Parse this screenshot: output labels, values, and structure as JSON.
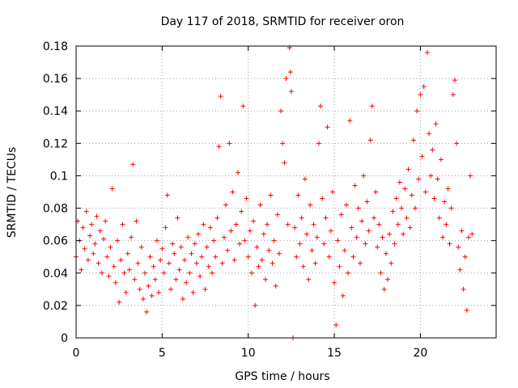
{
  "chart_data": {
    "type": "scatter",
    "title": "Day 117 of 2018, SRMTID for receiver oron",
    "xlabel": "GPS time / hours",
    "ylabel": "SRMTID / TECUs",
    "xlim": [
      0,
      24.4
    ],
    "ylim": [
      0,
      0.18
    ],
    "xticks": [
      0,
      5,
      10,
      15,
      20
    ],
    "xtick_labels": [
      "0",
      "5",
      "10",
      "15",
      "20"
    ],
    "yticks": [
      0,
      0.02,
      0.04,
      0.06,
      0.08,
      0.1,
      0.12,
      0.14,
      0.16,
      0.18
    ],
    "ytick_labels": [
      "0",
      "0.02",
      "0.04",
      "0.06",
      "0.08",
      "0.1",
      "0.12",
      "0.14",
      "0.16",
      "0.18"
    ],
    "grid": true,
    "marker": "+",
    "color": "#ff0000",
    "series": [
      {
        "name": "SRMTID",
        "points": [
          [
            0.0,
            0.05
          ],
          [
            0.1,
            0.072
          ],
          [
            0.2,
            0.06
          ],
          [
            0.3,
            0.042
          ],
          [
            0.4,
            0.068
          ],
          [
            0.5,
            0.055
          ],
          [
            0.6,
            0.078
          ],
          [
            0.7,
            0.048
          ],
          [
            0.8,
            0.063
          ],
          [
            0.9,
            0.07
          ],
          [
            1.0,
            0.052
          ],
          [
            1.1,
            0.058
          ],
          [
            1.2,
            0.075
          ],
          [
            1.3,
            0.046
          ],
          [
            1.4,
            0.066
          ],
          [
            1.5,
            0.04
          ],
          [
            1.6,
            0.061
          ],
          [
            1.7,
            0.072
          ],
          [
            1.8,
            0.05
          ],
          [
            1.9,
            0.038
          ],
          [
            2.0,
            0.056
          ],
          [
            2.1,
            0.092
          ],
          [
            2.2,
            0.044
          ],
          [
            2.3,
            0.034
          ],
          [
            2.4,
            0.06
          ],
          [
            2.5,
            0.022
          ],
          [
            2.6,
            0.048
          ],
          [
            2.7,
            0.07
          ],
          [
            2.8,
            0.04
          ],
          [
            2.9,
            0.028
          ],
          [
            3.0,
            0.052
          ],
          [
            3.1,
            0.042
          ],
          [
            3.2,
            0.062
          ],
          [
            3.3,
            0.107
          ],
          [
            3.4,
            0.036
          ],
          [
            3.5,
            0.072
          ],
          [
            3.6,
            0.046
          ],
          [
            3.7,
            0.03
          ],
          [
            3.8,
            0.056
          ],
          [
            3.9,
            0.024
          ],
          [
            4.0,
            0.04
          ],
          [
            4.1,
            0.016
          ],
          [
            4.2,
            0.032
          ],
          [
            4.3,
            0.05
          ],
          [
            4.4,
            0.026
          ],
          [
            4.5,
            0.044
          ],
          [
            4.6,
            0.036
          ],
          [
            4.7,
            0.06
          ],
          [
            4.8,
            0.028
          ],
          [
            4.9,
            0.048
          ],
          [
            5.0,
            0.055
          ],
          [
            5.1,
            0.04
          ],
          [
            5.2,
            0.068
          ],
          [
            5.3,
            0.088
          ],
          [
            5.4,
            0.046
          ],
          [
            5.5,
            0.03
          ],
          [
            5.6,
            0.058
          ],
          [
            5.7,
            0.052
          ],
          [
            5.8,
            0.036
          ],
          [
            5.9,
            0.074
          ],
          [
            6.0,
            0.042
          ],
          [
            6.1,
            0.056
          ],
          [
            6.2,
            0.024
          ],
          [
            6.3,
            0.048
          ],
          [
            6.4,
            0.034
          ],
          [
            6.5,
            0.062
          ],
          [
            6.6,
            0.04
          ],
          [
            6.7,
            0.052
          ],
          [
            6.8,
            0.028
          ],
          [
            6.9,
            0.058
          ],
          [
            7.0,
            0.046
          ],
          [
            7.1,
            0.064
          ],
          [
            7.2,
            0.038
          ],
          [
            7.3,
            0.05
          ],
          [
            7.4,
            0.07
          ],
          [
            7.5,
            0.03
          ],
          [
            7.6,
            0.056
          ],
          [
            7.7,
            0.044
          ],
          [
            7.8,
            0.068
          ],
          [
            7.9,
            0.04
          ],
          [
            8.0,
            0.06
          ],
          [
            8.1,
            0.05
          ],
          [
            8.2,
            0.074
          ],
          [
            8.3,
            0.118
          ],
          [
            8.4,
            0.149
          ],
          [
            8.5,
            0.046
          ],
          [
            8.6,
            0.062
          ],
          [
            8.7,
            0.082
          ],
          [
            8.8,
            0.054
          ],
          [
            8.9,
            0.12
          ],
          [
            9.0,
            0.066
          ],
          [
            9.1,
            0.09
          ],
          [
            9.2,
            0.048
          ],
          [
            9.3,
            0.07
          ],
          [
            9.4,
            0.102
          ],
          [
            9.5,
            0.058
          ],
          [
            9.6,
            0.078
          ],
          [
            9.7,
            0.143
          ],
          [
            9.8,
            0.06
          ],
          [
            9.9,
            0.086
          ],
          [
            10.0,
            0.05
          ],
          [
            10.1,
            0.066
          ],
          [
            10.2,
            0.04
          ],
          [
            10.3,
            0.072
          ],
          [
            10.4,
            0.02
          ],
          [
            10.5,
            0.056
          ],
          [
            10.6,
            0.044
          ],
          [
            10.7,
            0.082
          ],
          [
            10.8,
            0.048
          ],
          [
            10.9,
            0.064
          ],
          [
            11.0,
            0.036
          ],
          [
            11.1,
            0.07
          ],
          [
            11.2,
            0.054
          ],
          [
            11.3,
            0.088
          ],
          [
            11.4,
            0.046
          ],
          [
            11.5,
            0.06
          ],
          [
            11.6,
            0.032
          ],
          [
            11.7,
            0.076
          ],
          [
            11.8,
            0.052
          ],
          [
            11.9,
            0.14
          ],
          [
            12.0,
            0.12
          ],
          [
            12.1,
            0.108
          ],
          [
            12.2,
            0.16
          ],
          [
            12.3,
            0.07
          ],
          [
            12.4,
            0.179
          ],
          [
            12.45,
            0.164
          ],
          [
            12.5,
            0.152
          ],
          [
            12.6,
            0.0
          ],
          [
            12.7,
            0.068
          ],
          [
            12.8,
            0.05
          ],
          [
            12.9,
            0.088
          ],
          [
            13.0,
            0.058
          ],
          [
            13.1,
            0.074
          ],
          [
            13.2,
            0.044
          ],
          [
            13.3,
            0.098
          ],
          [
            13.4,
            0.064
          ],
          [
            13.5,
            0.036
          ],
          [
            13.6,
            0.082
          ],
          [
            13.7,
            0.054
          ],
          [
            13.8,
            0.07
          ],
          [
            13.9,
            0.046
          ],
          [
            14.0,
            0.062
          ],
          [
            14.1,
            0.12
          ],
          [
            14.2,
            0.143
          ],
          [
            14.3,
            0.086
          ],
          [
            14.4,
            0.058
          ],
          [
            14.5,
            0.074
          ],
          [
            14.6,
            0.13
          ],
          [
            14.7,
            0.05
          ],
          [
            14.8,
            0.066
          ],
          [
            14.9,
            0.09
          ],
          [
            15.0,
            0.034
          ],
          [
            15.1,
            0.008
          ],
          [
            15.2,
            0.06
          ],
          [
            15.3,
            0.044
          ],
          [
            15.4,
            0.076
          ],
          [
            15.5,
            0.026
          ],
          [
            15.6,
            0.054
          ],
          [
            15.7,
            0.082
          ],
          [
            15.8,
            0.04
          ],
          [
            15.9,
            0.134
          ],
          [
            16.0,
            0.068
          ],
          [
            16.1,
            0.05
          ],
          [
            16.2,
            0.094
          ],
          [
            16.3,
            0.062
          ],
          [
            16.4,
            0.08
          ],
          [
            16.5,
            0.046
          ],
          [
            16.6,
            0.072
          ],
          [
            16.7,
            0.1
          ],
          [
            16.8,
            0.058
          ],
          [
            16.9,
            0.084
          ],
          [
            17.0,
            0.066
          ],
          [
            17.1,
            0.122
          ],
          [
            17.2,
            0.143
          ],
          [
            17.3,
            0.074
          ],
          [
            17.4,
            0.09
          ],
          [
            17.5,
            0.056
          ],
          [
            17.6,
            0.07
          ],
          [
            17.7,
            0.04
          ],
          [
            17.8,
            0.062
          ],
          [
            17.9,
            0.03
          ],
          [
            18.0,
            0.052
          ],
          [
            18.1,
            0.036
          ],
          [
            18.2,
            0.064
          ],
          [
            18.3,
            0.046
          ],
          [
            18.4,
            0.078
          ],
          [
            18.5,
            0.058
          ],
          [
            18.6,
            0.086
          ],
          [
            18.7,
            0.07
          ],
          [
            18.8,
            0.096
          ],
          [
            18.9,
            0.08
          ],
          [
            19.0,
            0.064
          ],
          [
            19.1,
            0.092
          ],
          [
            19.2,
            0.074
          ],
          [
            19.3,
            0.104
          ],
          [
            19.4,
            0.068
          ],
          [
            19.5,
            0.088
          ],
          [
            19.6,
            0.122
          ],
          [
            19.7,
            0.08
          ],
          [
            19.8,
            0.14
          ],
          [
            19.9,
            0.098
          ],
          [
            20.0,
            0.15
          ],
          [
            20.1,
            0.112
          ],
          [
            20.2,
            0.155
          ],
          [
            20.3,
            0.09
          ],
          [
            20.4,
            0.176
          ],
          [
            20.5,
            0.126
          ],
          [
            20.6,
            0.1
          ],
          [
            20.7,
            0.116
          ],
          [
            20.8,
            0.086
          ],
          [
            20.9,
            0.132
          ],
          [
            21.0,
            0.098
          ],
          [
            21.1,
            0.074
          ],
          [
            21.2,
            0.11
          ],
          [
            21.3,
            0.062
          ],
          [
            21.4,
            0.084
          ],
          [
            21.5,
            0.07
          ],
          [
            21.6,
            0.092
          ],
          [
            21.7,
            0.058
          ],
          [
            21.8,
            0.08
          ],
          [
            21.9,
            0.15
          ],
          [
            22.0,
            0.159
          ],
          [
            22.1,
            0.12
          ],
          [
            22.2,
            0.056
          ],
          [
            22.3,
            0.042
          ],
          [
            22.4,
            0.066
          ],
          [
            22.5,
            0.03
          ],
          [
            22.6,
            0.05
          ],
          [
            22.7,
            0.017
          ],
          [
            22.8,
            0.062
          ],
          [
            22.9,
            0.1
          ],
          [
            23.0,
            0.064
          ]
        ]
      }
    ]
  }
}
